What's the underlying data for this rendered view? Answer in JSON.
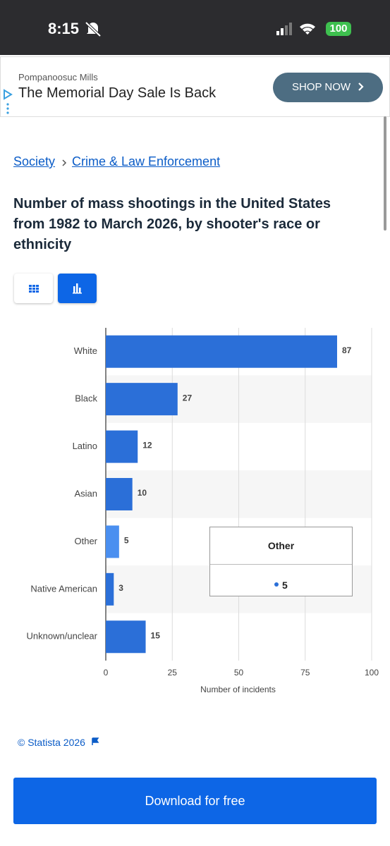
{
  "status_bar": {
    "time": "8:15",
    "battery": "100"
  },
  "ad": {
    "advertiser": "Pompanoosuc Mills",
    "headline": "The Memorial Day Sale Is Back",
    "cta": "SHOP NOW"
  },
  "breadcrumb": [
    "Society",
    "Crime & Law Enforcement"
  ],
  "chart_data": {
    "type": "bar",
    "orientation": "horizontal",
    "title": "Number of mass shootings in the United States from 1982 to March 2026, by shooter's race or ethnicity",
    "categories": [
      "White",
      "Black",
      "Latino",
      "Asian",
      "Other",
      "Native American",
      "Unknown/unclear"
    ],
    "values": [
      87,
      27,
      12,
      10,
      5,
      3,
      15
    ],
    "color": "#2b6fd8",
    "highlight_color": "#4a8ff0",
    "xlabel": "Number of incidents",
    "xlim": [
      0,
      100
    ],
    "xticks": [
      0,
      25,
      50,
      75,
      100
    ],
    "grid": true
  },
  "tooltip": {
    "category": "Other",
    "value": 5
  },
  "footer": {
    "copyright": "© Statista 2026",
    "button": "Download for free"
  }
}
